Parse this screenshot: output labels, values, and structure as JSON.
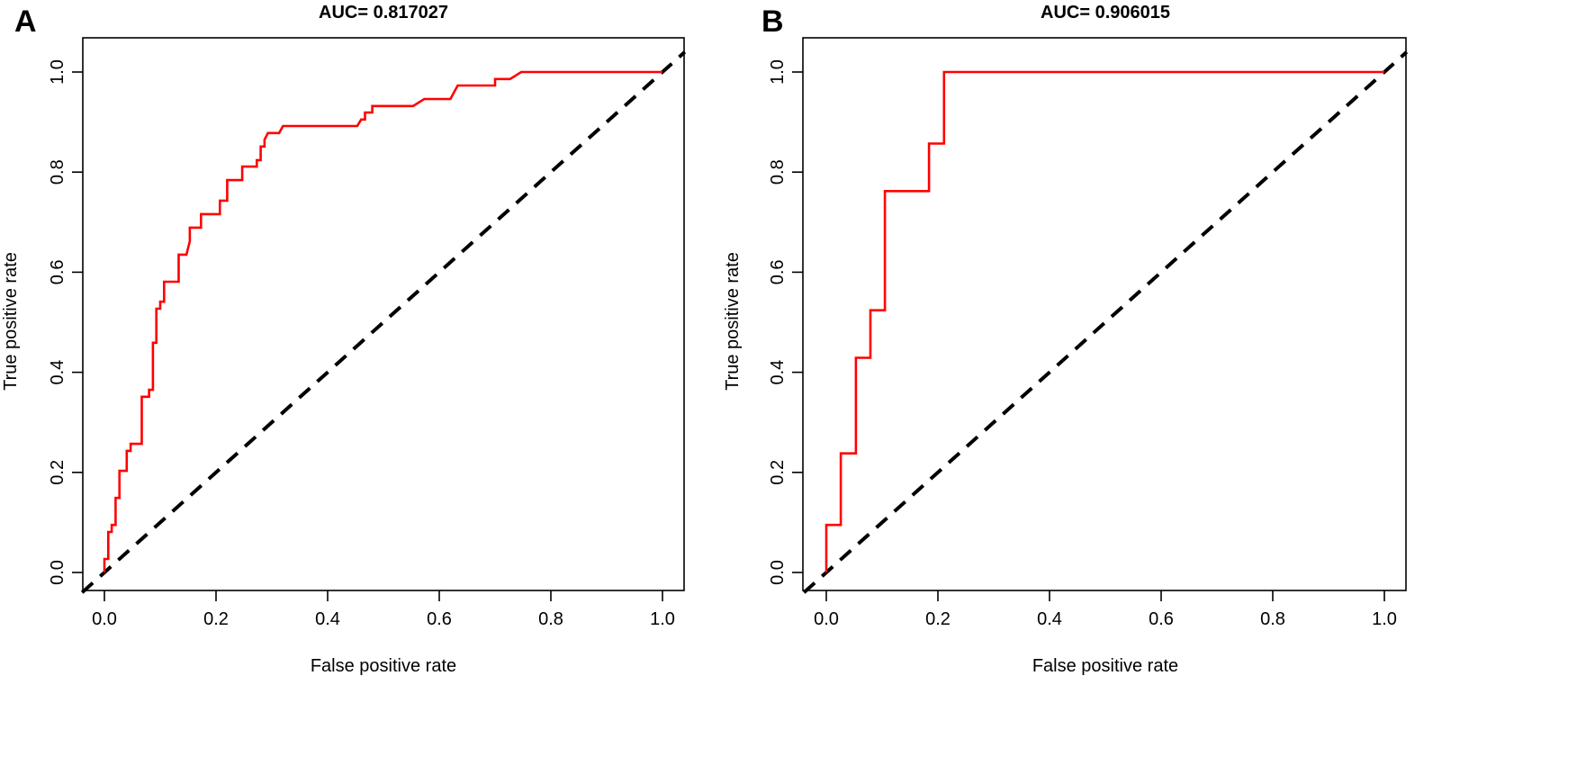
{
  "chart_data": [
    {
      "type": "line",
      "panel": "A",
      "title": "AUC= 0.817027",
      "xlabel": "False positive rate",
      "ylabel": "True positive rate",
      "xlim": [
        0,
        1
      ],
      "ylim": [
        0,
        1
      ],
      "x_ticks": [
        "0.0",
        "0.2",
        "0.4",
        "0.6",
        "0.8",
        "1.0"
      ],
      "y_ticks": [
        "0.0",
        "0.2",
        "0.4",
        "0.6",
        "0.8",
        "1.0"
      ],
      "grid": false,
      "series": [
        {
          "color": "#ff0000",
          "style": "solid",
          "points": [
            [
              0,
              0
            ],
            [
              0,
              0.027
            ],
            [
              0.007,
              0.027
            ],
            [
              0.007,
              0.081
            ],
            [
              0.013,
              0.081
            ],
            [
              0.013,
              0.095
            ],
            [
              0.02,
              0.095
            ],
            [
              0.02,
              0.149
            ],
            [
              0.027,
              0.149
            ],
            [
              0.027,
              0.203
            ],
            [
              0.04,
              0.203
            ],
            [
              0.04,
              0.243
            ],
            [
              0.047,
              0.243
            ],
            [
              0.047,
              0.257
            ],
            [
              0.067,
              0.257
            ],
            [
              0.067,
              0.351
            ],
            [
              0.08,
              0.351
            ],
            [
              0.08,
              0.365
            ],
            [
              0.087,
              0.365
            ],
            [
              0.087,
              0.459
            ],
            [
              0.093,
              0.459
            ],
            [
              0.093,
              0.527
            ],
            [
              0.1,
              0.527
            ],
            [
              0.1,
              0.541
            ],
            [
              0.107,
              0.541
            ],
            [
              0.107,
              0.581
            ],
            [
              0.133,
              0.581
            ],
            [
              0.133,
              0.635
            ],
            [
              0.147,
              0.635
            ],
            [
              0.153,
              0.662
            ],
            [
              0.153,
              0.689
            ],
            [
              0.173,
              0.689
            ],
            [
              0.173,
              0.716
            ],
            [
              0.207,
              0.716
            ],
            [
              0.207,
              0.743
            ],
            [
              0.22,
              0.743
            ],
            [
              0.22,
              0.784
            ],
            [
              0.247,
              0.784
            ],
            [
              0.247,
              0.811
            ],
            [
              0.273,
              0.811
            ],
            [
              0.273,
              0.824
            ],
            [
              0.28,
              0.824
            ],
            [
              0.28,
              0.851
            ],
            [
              0.287,
              0.851
            ],
            [
              0.287,
              0.865
            ],
            [
              0.293,
              0.878
            ],
            [
              0.313,
              0.878
            ],
            [
              0.32,
              0.892
            ],
            [
              0.453,
              0.892
            ],
            [
              0.46,
              0.905
            ],
            [
              0.467,
              0.905
            ],
            [
              0.467,
              0.919
            ],
            [
              0.48,
              0.919
            ],
            [
              0.48,
              0.932
            ],
            [
              0.553,
              0.932
            ],
            [
              0.573,
              0.946
            ],
            [
              0.62,
              0.946
            ],
            [
              0.633,
              0.973
            ],
            [
              0.7,
              0.973
            ],
            [
              0.7,
              0.986
            ],
            [
              0.727,
              0.986
            ],
            [
              0.747,
              1
            ],
            [
              1,
              1
            ]
          ]
        },
        {
          "color": "#000000",
          "style": "dashed",
          "points": [
            [
              0,
              0
            ],
            [
              1,
              1
            ]
          ]
        }
      ]
    },
    {
      "type": "line",
      "panel": "B",
      "title": "AUC= 0.906015",
      "xlabel": "False positive rate",
      "ylabel": "True positive rate",
      "xlim": [
        0,
        1
      ],
      "ylim": [
        0,
        1
      ],
      "x_ticks": [
        "0.0",
        "0.2",
        "0.4",
        "0.6",
        "0.8",
        "1.0"
      ],
      "y_ticks": [
        "0.0",
        "0.2",
        "0.4",
        "0.6",
        "0.8",
        "1.0"
      ],
      "grid": false,
      "series": [
        {
          "color": "#ff0000",
          "style": "solid",
          "points": [
            [
              0,
              0
            ],
            [
              0,
              0.095
            ],
            [
              0.026,
              0.095
            ],
            [
              0.026,
              0.238
            ],
            [
              0.053,
              0.238
            ],
            [
              0.053,
              0.429
            ],
            [
              0.079,
              0.429
            ],
            [
              0.079,
              0.524
            ],
            [
              0.105,
              0.524
            ],
            [
              0.105,
              0.762
            ],
            [
              0.184,
              0.762
            ],
            [
              0.184,
              0.857
            ],
            [
              0.211,
              0.857
            ],
            [
              0.211,
              1
            ],
            [
              1,
              1
            ]
          ]
        },
        {
          "color": "#000000",
          "style": "dashed",
          "points": [
            [
              0,
              0
            ],
            [
              1,
              1
            ]
          ]
        }
      ]
    }
  ]
}
